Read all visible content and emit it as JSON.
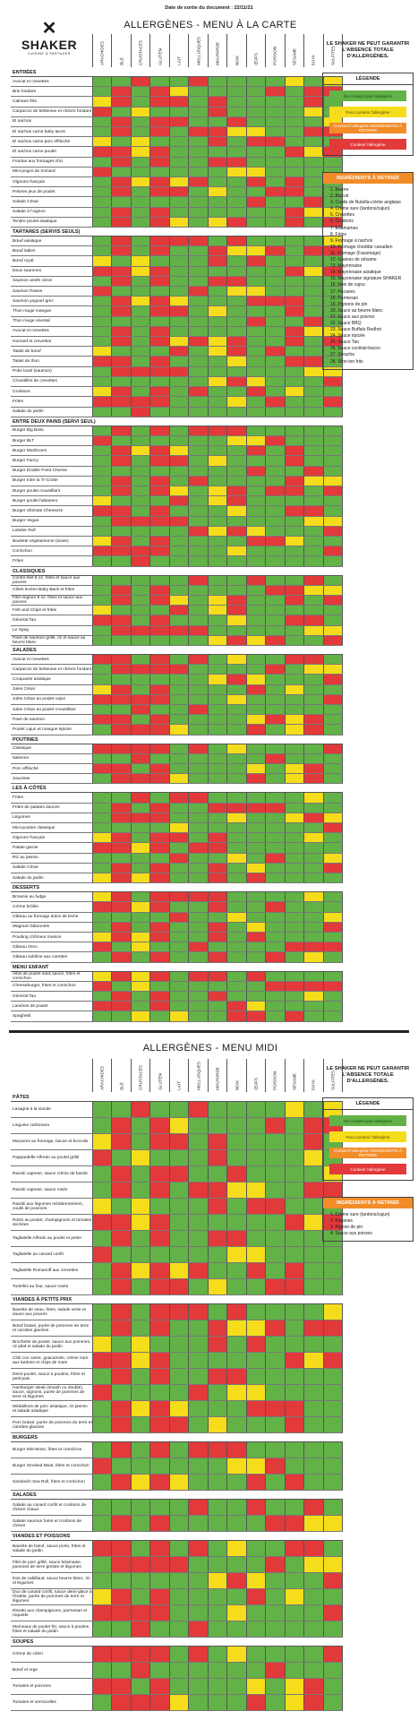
{
  "document_date": "Date de sortie du document : 22/11/21",
  "brand": {
    "mark": "✕",
    "name": "SHAKER",
    "tagline": "CUISINE À PARTAGER"
  },
  "titles": {
    "carte": "ALLERGÈNES - MENU À LA CARTE",
    "midi": "ALLERGÈNES - MENU MIDI"
  },
  "warning": "LE SHAKER NE PEUT GARANTIR L'ABSENCE TOTALE D'ALLERGÈNES.",
  "columns": [
    "ARACHIDES",
    "BLÉ",
    "CRUSTACÉS",
    "GLUTEN",
    "LAIT",
    "MOLLUSQUES",
    "MOUTARDE",
    "NOIX",
    "ŒUFS",
    "POISSON",
    "SÉSAME",
    "SOYA",
    "SULFITES"
  ],
  "legend": {
    "title": "LÉGENDE",
    "items": [
      {
        "label": "Ne contient pas l'allergène",
        "color": "#62b247"
      },
      {
        "label": "Peut contenir l'allergène",
        "color": "#f5dd1b"
      },
      {
        "label": "Contient l'allergène INGRÉDIENTS À RETIRER",
        "color": "#f28c28"
      },
      {
        "label": "Contient l'allergène",
        "color": "#e2393a"
      }
    ]
  },
  "ingredients_carte": {
    "title": "INGRÉDIENTS À RETIRER",
    "items": [
      "1. Beurre",
      "2. Biscuit",
      "3. Coulis de Nutella-crème anglaise",
      "4. Crème sure (tardons/cajun)",
      "5. Crevettes",
      "6. Croûtons",
      "7. Edamames",
      "8. Frites",
      "9. Fromage à nachos",
      "10. Fromage cheddar canadien",
      "11. Fromage (Fauxmage)",
      "12. Graines de sésame",
      "13. Mayonnaise",
      "14. Mayonnaise asiatique",
      "15. Mayonnaise signature SHAKER",
      "16. Noix de cajou",
      "17. Pacanes",
      "18. Parmesan",
      "19. Pignons de pin",
      "20. Sauce au beurre blanc",
      "21. Sauce aux poivres",
      "22. Sauce BBQ",
      "23. Sauce Buffalo Redhot",
      "24. Sauce épicée",
      "25. Sauce Tao",
      "26. Sauce cocktail-bacon",
      "27. Sriracha",
      "28. Won-ton frits"
    ]
  },
  "ingredients_midi": {
    "title": "INGRÉDIENTS À RETIRER",
    "items": [
      "1. Crème sure (tardons/cajun)",
      "2. Pacanes",
      "3. Pignon de pin",
      "4. Sauce aux poivres"
    ]
  },
  "carte_sections": [
    {
      "name": "ENTRÉES",
      "items": [
        "Avocat et crevettes",
        "Brie fondant",
        "Calmars frits",
        "Carpaccio de betterave et chèvre fondant",
        "El nachos",
        "El nachos carne baby tacos",
        "El nachos carne porc effiloché",
        "El nachos carne poulet",
        "Fondue aux fromages d'ici",
        "Mini-pogos de homard",
        "Oignons français",
        "Pelures jeux de poulet",
        "Salade César",
        "Salade à l'oignon",
        "Tendre poulet asiatique"
      ]
    },
    {
      "name": "TARTARES (SERVIS SEULS)",
      "items": [
        "Bœuf asiatique",
        "Bœuf italien",
        "Bœuf royal",
        "Deux saumons",
        "Saumon aneth citron",
        "Saumon fraises",
        "Saumon yogourt grec",
        "Thon rouge mangue",
        "Thon rouge oriental",
        "Avocat et crevettes",
        "Homard et crevettes",
        "Tataki de bœuf",
        "Tataki de thon",
        "Poke bowl (saumon)",
        "Croustilles de crevettes",
        "Croûtons",
        "Frites",
        "Salade du jardin"
      ]
    },
    {
      "name": "ENTRE DEUX PAINS (SERVI SEUL)",
      "items": [
        "Burger Big Boss",
        "Burger BLT",
        "Burger Mushroom",
        "Burger Fancy",
        "Burger Double Fried Cheese",
        "Burger Inter la Tr-Crotte",
        "Burger poulet croustillant",
        "Burger poulet habanero",
        "Burger Ultimate Cheeseze",
        "Burger Vegan",
        "Lobster Roll",
        "Boulette végétarienne (seule)",
        "Cornichon",
        "Frites"
      ]
    },
    {
      "name": "CLASSIQUES",
      "items": [
        "Contre-filet 8 oz, frites et sauce aux poivres",
        "Côtes levées Baby Back et frites",
        "Filet mignon 8 oz, frites et sauce aux poivres",
        "Fish and Chips et frites",
        "Général Tao",
        "Le Spag",
        "Pavé de saumon grillé, riz et sauce au beurre blanc"
      ]
    },
    {
      "name": "SALADES",
      "items": [
        "Avocat et crevettes",
        "Carpaccio de betterave et chèvre fondant",
        "Croquante asiatique",
        "Jules César",
        "Jules César au poulet cajun",
        "Jules César au poulet croustillant",
        "Pavé de saumon",
        "Poulet cajun et mangue épicée"
      ]
    },
    {
      "name": "POUTINES",
      "items": [
        "Classique",
        "Italienne",
        "Porc effiloché",
        "Saucisse"
      ]
    },
    {
      "name": "LES À-CÔTÉS",
      "items": [
        "Frites",
        "Frites de patates douces",
        "Légumes",
        "Mini-poutine classique",
        "Oignons français",
        "Patate garnie",
        "Riz au jasmin",
        "Salade César",
        "Salade du jardin"
      ]
    },
    {
      "name": "DESSERTS",
      "items": [
        "Brownie au fudge",
        "Crème brûlée",
        "Gâteau au fromage dulce de leche",
        "Magnum bâtonnets",
        "Pouding chômeur maison",
        "Gâteau Oreo",
        "Gâteau sublime aux carottes"
      ]
    },
    {
      "name": "MENU ENFANT",
      "items": [
        "Ailes de poulet sans sauce, frites et cornichon",
        "Cheeseburger, frites et cornichon",
        "Général Tao",
        "Lanières de poulet",
        "Spaghetti"
      ]
    }
  ],
  "midi_sections": [
    {
      "name": "PÂTES",
      "items": [
        "Lasagne à la viande",
        "Linguine carbonara",
        "Macaroni au fromage, bacon et brocolis",
        "Pappardelle Alfredo au poulet grillé",
        "Ravioli caprese, sauce crème de basilic",
        "Ravioli caprese, sauce rosée",
        "Ravioli aux légumes méditerranéens, coulis de poivrons",
        "Rotini au poulet, champignons et tomates séchées",
        "Tagliatelle Alfredo au poulet et pesto",
        "Tagliatelle au canard confit",
        "Tagliatelle Romanoff aux crevettes",
        "Tortellini au four, sauce rosée"
      ]
    },
    {
      "name": "VIANDES À PETITS PRIX",
      "items": [
        "Bavette de veau, frites, salade verte et sauce aux poivres",
        "Bœuf braisé, purée de pommes de terre et carottes glacées",
        "Brochette de poulet, sauce aux pommes, riz pilaf et salade du jardin",
        "Chili con carne, guacamole, crème sure aux lardons et chips de maïs",
        "Demi-poulet, sauce à poutine, frites et petit pain",
        "Hamburger steak (smash ou double), sauce, oignons, purée de pommes de terre et légumes",
        "Médaillons de porc asiatique, riz jasmin et salade asiatique",
        "Porc braisé, purée de pommes de terre et carottes glacées"
      ]
    },
    {
      "name": "BURGERS",
      "items": [
        "Burger Mini-Boss, frites et cornichon",
        "Burger Smoked Meat, frites et cornichon",
        "Sandwich Sea Roll, frites et cornichon"
      ]
    },
    {
      "name": "SALADES",
      "items": [
        "Salade au canard confit et croûtons de chèvre chaud",
        "Salade saumon fumé et croûtons de chèvre"
      ]
    },
    {
      "name": "VIANDES ET POISSONS",
      "items": [
        "Bavette de bœuf, sauce porto, frites et salade du jardin",
        "Filet de porc grillé, sauce béarnaise, pommes de terre grelots et légumes",
        "Dos de cabillaud, sauce beurre blanc, riz et légumes",
        "Duo de canard confit, sauce demi-glace à l'érable, purée de pommes de terre et légumes",
        "Risotto aux champignons, parmesan et roquette",
        "Morceaux de poulet frit, sauce à poutine, frites et salade du jardin"
      ]
    },
    {
      "name": "SOUPES",
      "items": [
        "Crème de céleri",
        "Bœuf et orge",
        "Tomates et poivrons",
        "Tomates et vermicelles"
      ]
    }
  ]
}
